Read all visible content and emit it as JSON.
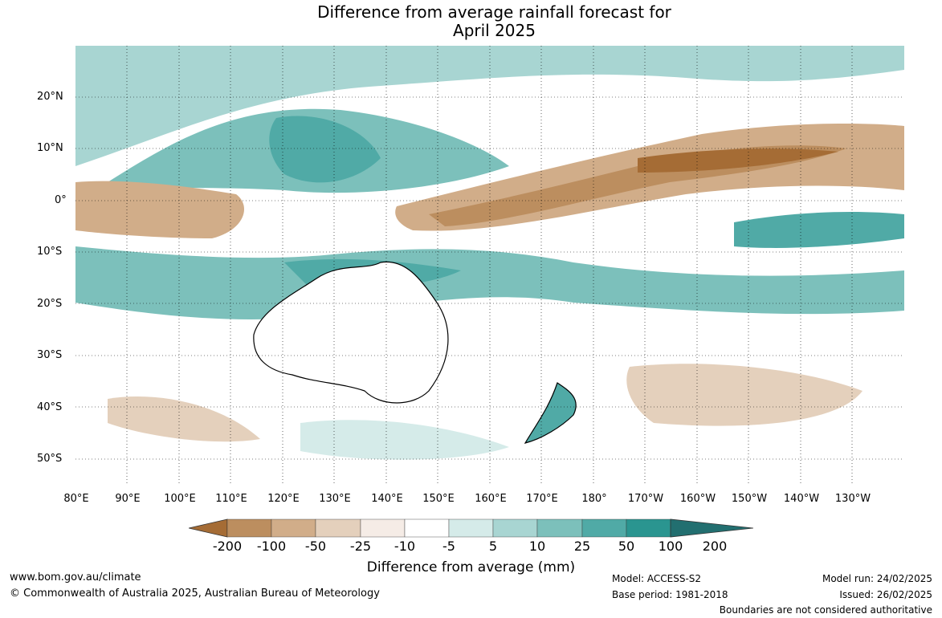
{
  "title_line1": "Difference from average rainfall forecast for",
  "title_line2": "April 2025",
  "lat_labels": [
    "20°N",
    "10°N",
    "0°",
    "10°S",
    "20°S",
    "30°S",
    "40°S",
    "50°S"
  ],
  "lon_labels": [
    "80°E",
    "90°E",
    "100°E",
    "110°E",
    "120°E",
    "130°E",
    "140°E",
    "150°E",
    "160°E",
    "170°E",
    "180°",
    "170°W",
    "160°W",
    "150°W",
    "140°W",
    "130°W"
  ],
  "colorbar": {
    "ticks": [
      "-200",
      "-100",
      "-50",
      "-25",
      "-10",
      "-5",
      "5",
      "10",
      "25",
      "50",
      "100",
      "200"
    ],
    "colors": [
      "#a56c35",
      "#bc8e5f",
      "#d1ad89",
      "#e4d0bc",
      "#f5ece6",
      "#ffffff",
      "#d5ebe9",
      "#a8d5d2",
      "#7cc0bb",
      "#50aaa6",
      "#2a9590",
      "#226f70"
    ],
    "label": "Difference from average (mm)"
  },
  "footer": {
    "url": "www.bom.gov.au/climate",
    "copyright": "© Commonwealth of Australia 2025, Australian Bureau of Meteorology",
    "model": "Model: ACCESS-S2",
    "base_period": "Base period: 1981-2018",
    "model_run": "Model run: 24/02/2025",
    "issued": "Issued: 26/02/2025",
    "disclaimer": "Boundaries are not considered authoritative"
  }
}
